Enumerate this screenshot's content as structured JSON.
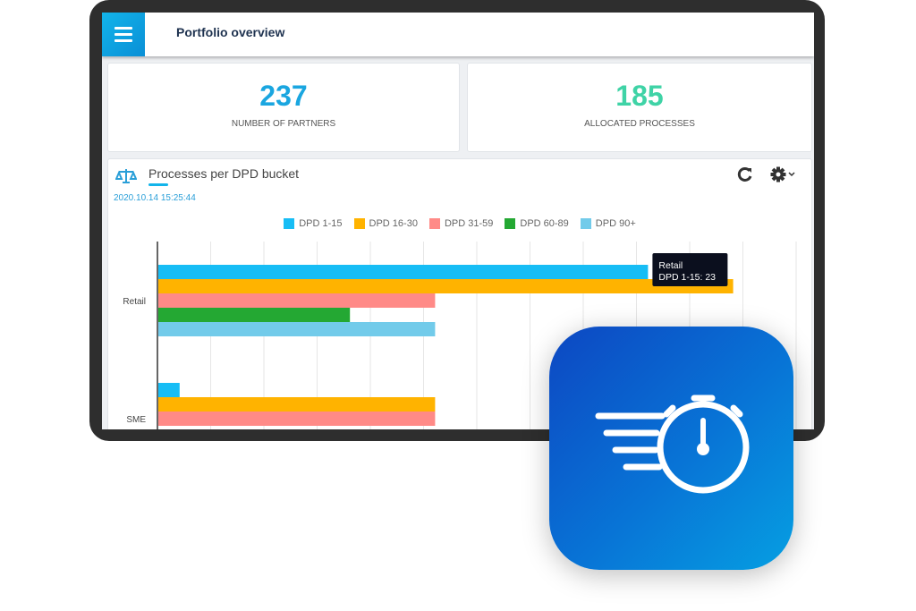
{
  "header": {
    "title": "Portfolio overview",
    "menu_icon": "hamburger-icon"
  },
  "kpis": [
    {
      "value": "237",
      "label": "NUMBER OF PARTNERS",
      "color": "#1aa6e0"
    },
    {
      "value": "185",
      "label": "ALLOCATED PROCESSES",
      "color": "#3fd3a6"
    }
  ],
  "chart_panel": {
    "title": "Processes per DPD bucket",
    "timestamp": "2020.10.14 15:25:44",
    "icons": [
      "scale-icon",
      "refresh-icon",
      "gear-icon",
      "chevron-down-icon"
    ]
  },
  "chart_data": {
    "type": "bar",
    "orientation": "horizontal",
    "categories": [
      "Retail",
      "SME"
    ],
    "series": [
      {
        "name": "DPD 1-15",
        "color": "#17bdf5",
        "values": [
          23,
          1
        ]
      },
      {
        "name": "DPD 16-30",
        "color": "#ffb300",
        "values": [
          27,
          13
        ]
      },
      {
        "name": "DPD 31-59",
        "color": "#ff8a87",
        "values": [
          13,
          13
        ]
      },
      {
        "name": "DPD 60-89",
        "color": "#24a833",
        "values": [
          9,
          null
        ]
      },
      {
        "name": "DPD 90+",
        "color": "#72cbea",
        "values": [
          13,
          null
        ]
      }
    ],
    "xlim": [
      0,
      30
    ],
    "grid": true,
    "legend": "top-center",
    "tooltip": {
      "category": "Retail",
      "text": "DPD 1-15: 23"
    }
  }
}
